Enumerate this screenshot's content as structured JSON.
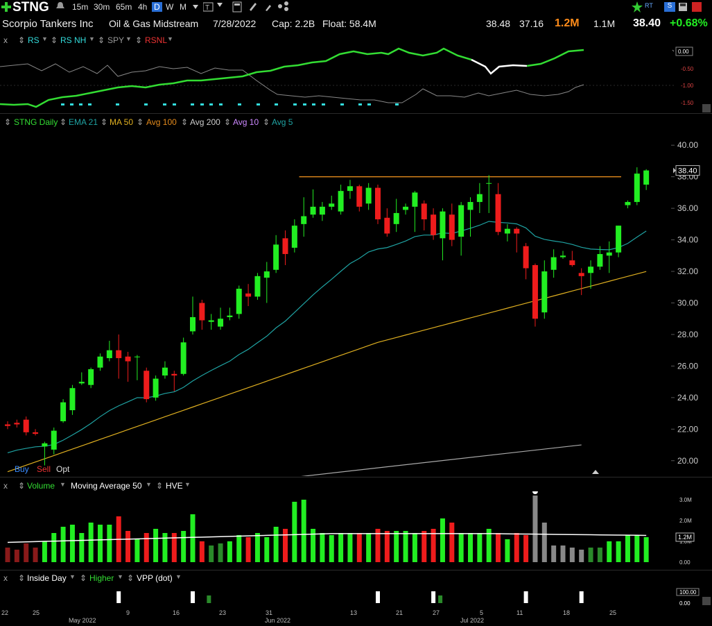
{
  "toolbar": {
    "symbol": "STNG",
    "intervals": [
      "15m",
      "30m",
      "65m",
      "4h",
      "D",
      "W",
      "M"
    ],
    "active_interval": "D",
    "icons": [
      "plus-icon",
      "bell-icon",
      "star-icon",
      "rt-badge",
      "s-badge",
      "save-icon",
      "settings-icon"
    ]
  },
  "info": {
    "company": "Scorpio Tankers Inc",
    "industry": "Oil & Gas Midstream",
    "date": "7/28/2022",
    "cap": "Cap: 2.2B",
    "float": "Float: 58.4M",
    "high": "38.48",
    "low": "37.16",
    "volume": "1.2M",
    "avg_volume": "1.1M",
    "last": "38.40",
    "change": "+0.68%"
  },
  "colors": {
    "up": "#22ee22",
    "down": "#ee1c1c",
    "ema21": "#1fa3a3",
    "ma50": "#e0b020",
    "avg200": "#aaaaaa",
    "resistance": "#e38a1c",
    "rs_line": "#33dd33",
    "rs_nh_dot": "#33dddd",
    "volume_ma": "#ffffff"
  },
  "rs_panel": {
    "close_label": "x",
    "items": [
      "RS",
      "RS NH",
      "SPY",
      "RSNL"
    ],
    "scale": [
      "0.00",
      "-0.50",
      "-1.00",
      "-1.50"
    ]
  },
  "price_panel": {
    "items": [
      "STNG Daily",
      "EMA 21",
      "MA 50",
      "Avg 100",
      "Avg 200",
      "Avg 10",
      "Avg 5"
    ],
    "trade_buttons": [
      "Buy",
      "Sell",
      "Opt"
    ],
    "last_price_tag": "38.40"
  },
  "volume_panel": {
    "close_label": "x",
    "items": [
      "Volume",
      "Moving Average 50",
      "HVE"
    ],
    "scale": [
      "3.0M",
      "2.0M",
      "1.0M",
      "0.00"
    ],
    "last_tag": "1.2M"
  },
  "bottom_panel": {
    "close_label": "x",
    "items": [
      "Inside Day",
      "Higher",
      "VPP (dot)"
    ],
    "scale": [
      "100.00",
      "0.00"
    ]
  },
  "chart_data": {
    "type": "candlestick",
    "title": "STNG Daily",
    "ylim": [
      19,
      41
    ],
    "yticks": [
      20,
      22,
      24,
      26,
      28,
      30,
      32,
      34,
      36,
      38,
      40
    ],
    "xticks": [
      "22",
      "25",
      "May 2022",
      "9",
      "16",
      "23",
      "31",
      "Jun 2022",
      "13",
      "21",
      "27",
      "Jul 2022",
      "5",
      "11",
      "18",
      "25"
    ],
    "resistance": 38.0,
    "candles": [
      {
        "d": "2022-04-19",
        "o": 22.3,
        "h": 22.5,
        "l": 22.0,
        "c": 22.2,
        "v": 0.7
      },
      {
        "d": "2022-04-20",
        "o": 22.4,
        "h": 22.6,
        "l": 22.1,
        "c": 22.3,
        "v": 0.6
      },
      {
        "d": "2022-04-21",
        "o": 22.6,
        "h": 22.8,
        "l": 21.6,
        "c": 21.8,
        "v": 0.9
      },
      {
        "d": "2022-04-22",
        "o": 21.8,
        "h": 22.0,
        "l": 21.6,
        "c": 21.7,
        "v": 0.7
      },
      {
        "d": "2022-04-25",
        "o": 20.9,
        "h": 21.2,
        "l": 19.7,
        "c": 21.1,
        "v": 1.0
      },
      {
        "d": "2022-04-26",
        "o": 20.7,
        "h": 22.1,
        "l": 20.4,
        "c": 21.9,
        "v": 1.4
      },
      {
        "d": "2022-04-27",
        "o": 22.5,
        "h": 23.9,
        "l": 22.4,
        "c": 23.7,
        "v": 1.7
      },
      {
        "d": "2022-04-28",
        "o": 23.2,
        "h": 24.8,
        "l": 22.9,
        "c": 24.6,
        "v": 1.8
      },
      {
        "d": "2022-04-29",
        "o": 24.9,
        "h": 25.6,
        "l": 24.8,
        "c": 25.0,
        "v": 1.4
      },
      {
        "d": "2022-05-02",
        "o": 24.8,
        "h": 25.9,
        "l": 24.6,
        "c": 25.8,
        "v": 1.9
      },
      {
        "d": "2022-05-03",
        "o": 25.9,
        "h": 26.8,
        "l": 25.7,
        "c": 26.6,
        "v": 1.8
      },
      {
        "d": "2022-05-04",
        "o": 26.5,
        "h": 27.6,
        "l": 26.3,
        "c": 27.0,
        "v": 1.8
      },
      {
        "d": "2022-05-05",
        "o": 27.0,
        "h": 28.0,
        "l": 25.2,
        "c": 26.5,
        "v": 2.2
      },
      {
        "d": "2022-05-06",
        "o": 26.6,
        "h": 26.9,
        "l": 25.0,
        "c": 26.3,
        "v": 1.5
      },
      {
        "d": "2022-05-09",
        "o": 26.6,
        "h": 26.7,
        "l": 25.1,
        "c": 26.6,
        "v": 1.1
      },
      {
        "d": "2022-05-10",
        "o": 25.7,
        "h": 25.9,
        "l": 23.7,
        "c": 23.9,
        "v": 1.4
      },
      {
        "d": "2022-05-11",
        "o": 24.0,
        "h": 25.4,
        "l": 23.8,
        "c": 25.2,
        "v": 1.6
      },
      {
        "d": "2022-05-12",
        "o": 25.4,
        "h": 26.3,
        "l": 25.2,
        "c": 25.9,
        "v": 1.4
      },
      {
        "d": "2022-05-13",
        "o": 25.5,
        "h": 25.7,
        "l": 24.4,
        "c": 25.4,
        "v": 1.4
      },
      {
        "d": "2022-05-16",
        "o": 25.5,
        "h": 27.8,
        "l": 25.4,
        "c": 27.5,
        "v": 1.5
      },
      {
        "d": "2022-05-17",
        "o": 28.2,
        "h": 30.4,
        "l": 28.0,
        "c": 29.1,
        "v": 2.3
      },
      {
        "d": "2022-05-18",
        "o": 30.0,
        "h": 30.2,
        "l": 28.3,
        "c": 28.9,
        "v": 1.0
      },
      {
        "d": "2022-05-19",
        "o": 28.8,
        "h": 29.3,
        "l": 28.3,
        "c": 28.9,
        "v": 0.8
      },
      {
        "d": "2022-05-20",
        "o": 28.5,
        "h": 29.7,
        "l": 28.3,
        "c": 29.0,
        "v": 0.9
      },
      {
        "d": "2022-05-23",
        "o": 29.1,
        "h": 29.7,
        "l": 28.9,
        "c": 29.2,
        "v": 1.0
      },
      {
        "d": "2022-05-24",
        "o": 29.3,
        "h": 31.1,
        "l": 29.0,
        "c": 30.9,
        "v": 1.3
      },
      {
        "d": "2022-05-25",
        "o": 30.6,
        "h": 31.2,
        "l": 29.8,
        "c": 30.4,
        "v": 1.2
      },
      {
        "d": "2022-05-26",
        "o": 30.4,
        "h": 31.9,
        "l": 30.2,
        "c": 31.7,
        "v": 1.4
      },
      {
        "d": "2022-05-27",
        "o": 31.6,
        "h": 32.6,
        "l": 30.0,
        "c": 32.0,
        "v": 1.2
      },
      {
        "d": "2022-05-31",
        "o": 32.1,
        "h": 34.3,
        "l": 31.9,
        "c": 33.7,
        "v": 1.7
      },
      {
        "d": "2022-06-01",
        "o": 34.1,
        "h": 34.6,
        "l": 32.4,
        "c": 33.1,
        "v": 1.6
      },
      {
        "d": "2022-06-02",
        "o": 33.5,
        "h": 35.3,
        "l": 33.2,
        "c": 34.9,
        "v": 2.9
      },
      {
        "d": "2022-06-03",
        "o": 35.0,
        "h": 36.7,
        "l": 34.2,
        "c": 35.5,
        "v": 3.0
      },
      {
        "d": "2022-06-06",
        "o": 35.6,
        "h": 37.2,
        "l": 35.4,
        "c": 36.1,
        "v": 1.6
      },
      {
        "d": "2022-06-07",
        "o": 35.6,
        "h": 36.4,
        "l": 35.2,
        "c": 36.1,
        "v": 1.4
      },
      {
        "d": "2022-06-08",
        "o": 36.1,
        "h": 36.8,
        "l": 35.9,
        "c": 36.3,
        "v": 1.3
      },
      {
        "d": "2022-06-09",
        "o": 35.8,
        "h": 37.5,
        "l": 35.6,
        "c": 37.1,
        "v": 1.4
      },
      {
        "d": "2022-06-10",
        "o": 37.1,
        "h": 37.8,
        "l": 36.6,
        "c": 37.4,
        "v": 1.4
      },
      {
        "d": "2022-06-13",
        "o": 37.4,
        "h": 37.5,
        "l": 35.8,
        "c": 36.1,
        "v": 1.4
      },
      {
        "d": "2022-06-14",
        "o": 36.3,
        "h": 37.6,
        "l": 35.9,
        "c": 37.3,
        "v": 1.4
      },
      {
        "d": "2022-06-15",
        "o": 37.3,
        "h": 37.5,
        "l": 35.0,
        "c": 35.3,
        "v": 1.6
      },
      {
        "d": "2022-06-16",
        "o": 35.4,
        "h": 36.0,
        "l": 34.2,
        "c": 34.4,
        "v": 1.5
      },
      {
        "d": "2022-06-17",
        "o": 35.0,
        "h": 36.6,
        "l": 34.5,
        "c": 35.7,
        "v": 1.5
      },
      {
        "d": "2022-06-21",
        "o": 35.9,
        "h": 36.3,
        "l": 35.6,
        "c": 36.1,
        "v": 1.5
      },
      {
        "d": "2022-06-22",
        "o": 36.1,
        "h": 37.1,
        "l": 34.5,
        "c": 37.0,
        "v": 1.4
      },
      {
        "d": "2022-06-23",
        "o": 36.3,
        "h": 36.5,
        "l": 34.6,
        "c": 35.3,
        "v": 1.5
      },
      {
        "d": "2022-06-24",
        "o": 35.6,
        "h": 36.0,
        "l": 34.0,
        "c": 34.3,
        "v": 1.6
      },
      {
        "d": "2022-06-27",
        "o": 34.1,
        "h": 36.0,
        "l": 32.7,
        "c": 35.8,
        "v": 2.1
      },
      {
        "d": "2022-06-28",
        "o": 35.6,
        "h": 36.3,
        "l": 33.6,
        "c": 34.0,
        "v": 1.9
      },
      {
        "d": "2022-06-29",
        "o": 34.2,
        "h": 36.4,
        "l": 33.0,
        "c": 36.2,
        "v": 1.4
      },
      {
        "d": "2022-06-30",
        "o": 35.9,
        "h": 36.7,
        "l": 34.2,
        "c": 36.4,
        "v": 1.4
      },
      {
        "d": "2022-07-01",
        "o": 36.4,
        "h": 37.6,
        "l": 35.7,
        "c": 36.9,
        "v": 1.4
      },
      {
        "d": "2022-07-05",
        "o": 37.6,
        "h": 38.1,
        "l": 35.7,
        "c": 37.6,
        "v": 1.6
      },
      {
        "d": "2022-07-06",
        "o": 36.9,
        "h": 37.6,
        "l": 34.3,
        "c": 34.5,
        "v": 1.4
      },
      {
        "d": "2022-07-07",
        "o": 34.4,
        "h": 35.0,
        "l": 33.9,
        "c": 34.7,
        "v": 1.1
      },
      {
        "d": "2022-07-08",
        "o": 34.7,
        "h": 34.8,
        "l": 33.2,
        "c": 34.4,
        "v": 1.4
      },
      {
        "d": "2022-07-11",
        "o": 33.6,
        "h": 33.8,
        "l": 31.5,
        "c": 32.2,
        "v": 1.3
      },
      {
        "d": "2022-07-12",
        "o": 32.4,
        "h": 32.5,
        "l": 28.5,
        "c": 29.0,
        "v": 3.2
      },
      {
        "d": "2022-07-13",
        "o": 29.4,
        "h": 32.7,
        "l": 29.0,
        "c": 32.0,
        "v": 1.9
      },
      {
        "d": "2022-07-14",
        "o": 32.1,
        "h": 33.4,
        "l": 31.6,
        "c": 32.9,
        "v": 0.8
      },
      {
        "d": "2022-07-15",
        "o": 32.9,
        "h": 33.3,
        "l": 32.8,
        "c": 33.0,
        "v": 0.8
      },
      {
        "d": "2022-07-18",
        "o": 32.7,
        "h": 33.3,
        "l": 32.3,
        "c": 32.4,
        "v": 0.7
      },
      {
        "d": "2022-07-19",
        "o": 31.9,
        "h": 32.2,
        "l": 30.5,
        "c": 31.7,
        "v": 0.6
      },
      {
        "d": "2022-07-20",
        "o": 31.9,
        "h": 32.7,
        "l": 30.9,
        "c": 32.3,
        "v": 0.7
      },
      {
        "d": "2022-07-21",
        "o": 32.3,
        "h": 33.6,
        "l": 32.1,
        "c": 33.1,
        "v": 0.7
      },
      {
        "d": "2022-07-22",
        "o": 33.0,
        "h": 33.9,
        "l": 31.9,
        "c": 33.2,
        "v": 1.0
      },
      {
        "d": "2022-07-25",
        "o": 33.2,
        "h": 34.9,
        "l": 32.9,
        "c": 34.9,
        "v": 1.0
      },
      {
        "d": "2022-07-26",
        "o": 36.2,
        "h": 36.5,
        "l": 36.0,
        "c": 36.4,
        "v": 1.3
      },
      {
        "d": "2022-07-27",
        "o": 36.4,
        "h": 38.6,
        "l": 36.2,
        "c": 38.2,
        "v": 1.3
      },
      {
        "d": "2022-07-28",
        "o": 37.5,
        "h": 38.48,
        "l": 37.16,
        "c": 38.4,
        "v": 1.2
      }
    ]
  }
}
